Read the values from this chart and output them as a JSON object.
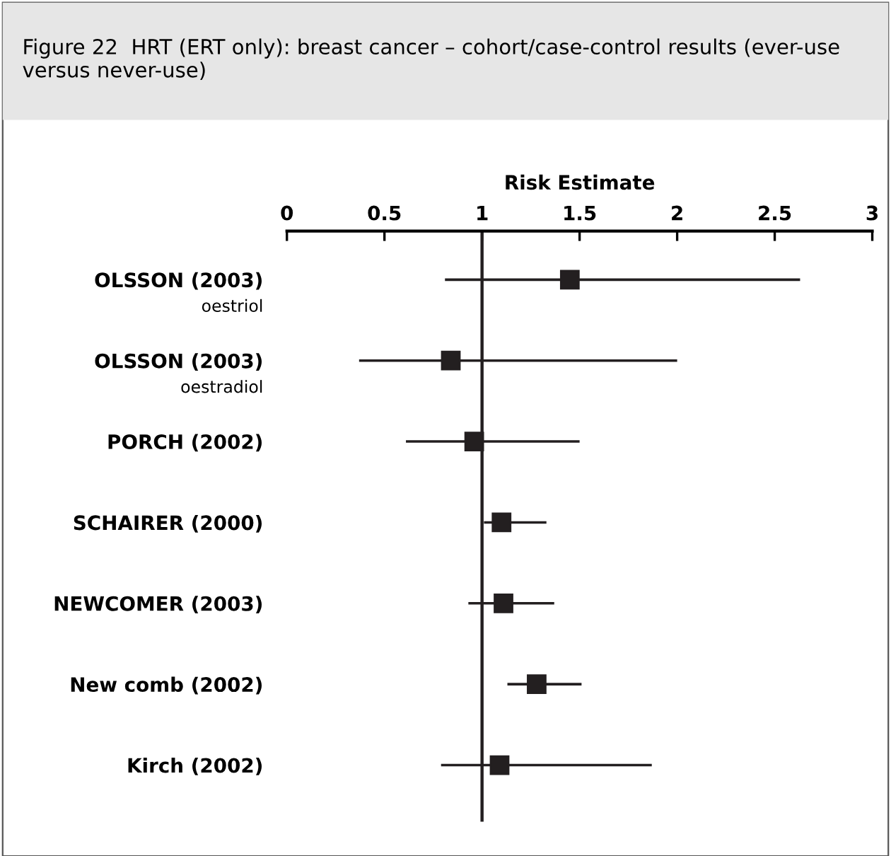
{
  "chart_data": {
    "type": "scatter",
    "orientation": "horizontal",
    "title": "Figure 22  HRT (ERT only): breast cancer – cohort/case-control results (ever-use versus never-use)",
    "xlabel": "Risk Estimate",
    "categories": [
      "OLSSON (2003)\noestriol",
      "OLSSON (2003)\noestradiol",
      "PORCH (2002)",
      "SCHAIRER (2000)",
      "NEWCOMER (2003)",
      "New comb (2002)",
      "Kirch (2002)"
    ],
    "values": [
      1.45,
      0.84,
      0.96,
      1.1,
      1.11,
      1.28,
      1.09
    ],
    "errors": [
      [
        0.81,
        2.63
      ],
      [
        0.37,
        2.0
      ],
      [
        0.61,
        1.5
      ],
      [
        1.01,
        1.33
      ],
      [
        0.93,
        1.37
      ],
      [
        1.13,
        1.51
      ],
      [
        0.79,
        1.87
      ]
    ],
    "color": "#231f20",
    "marker": "square",
    "xlim": [
      0,
      3
    ],
    "xticks": [
      0,
      0.5,
      1,
      1.5,
      2,
      2.5,
      3
    ],
    "ref_lines": [
      {
        "axis": "x",
        "value": 1
      }
    ],
    "grid": false,
    "legend": false
  }
}
